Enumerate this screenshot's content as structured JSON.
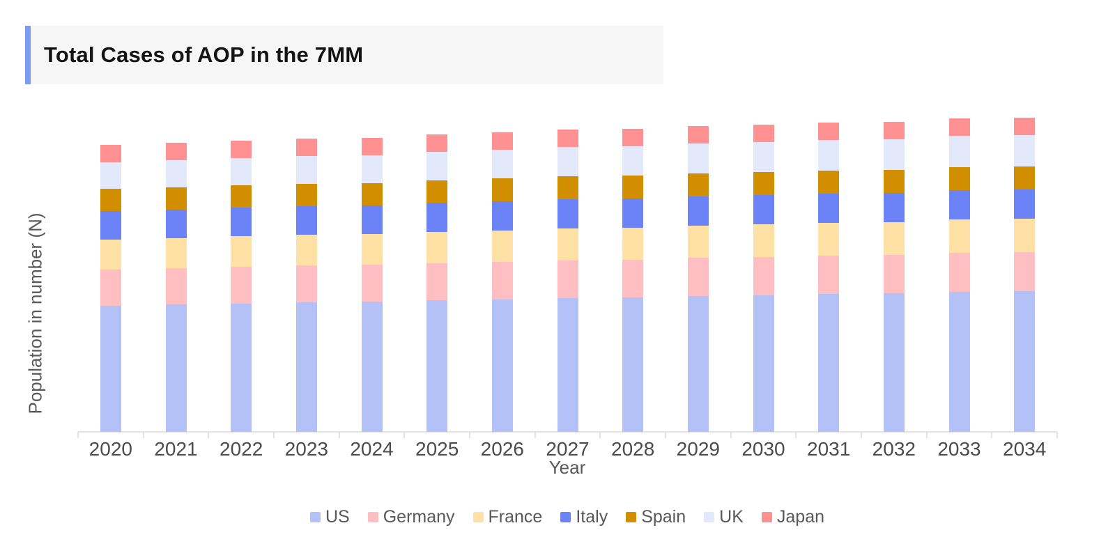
{
  "header": {
    "title": "Total Cases of AOP in the 7MM",
    "accent_color": "#7B9CF0",
    "background": "#F6F6F6"
  },
  "chart_data": {
    "type": "bar",
    "stacked": true,
    "title": "Total Cases of AOP in the 7MM",
    "xlabel": "Year",
    "ylabel": "Population in number (N)",
    "categories": [
      "2020",
      "2021",
      "2022",
      "2023",
      "2024",
      "2025",
      "2026",
      "2027",
      "2028",
      "2029",
      "2030",
      "2031",
      "2032",
      "2033",
      "2034"
    ],
    "series": [
      {
        "name": "US",
        "color": "#B3C1F7",
        "values": [
          181,
          183,
          184,
          186,
          187,
          189,
          190,
          192,
          193,
          195,
          196,
          198,
          199,
          201,
          202
        ]
      },
      {
        "name": "Germany",
        "color": "#FFBEC2",
        "values": [
          52,
          52,
          53,
          53,
          53,
          53,
          54,
          54,
          54,
          55,
          55,
          55,
          55,
          56,
          56
        ]
      },
      {
        "name": "France",
        "color": "#FFE1A6",
        "values": [
          43,
          43,
          44,
          44,
          44,
          45,
          45,
          46,
          46,
          46,
          47,
          47,
          47,
          48,
          48
        ]
      },
      {
        "name": "Italy",
        "color": "#6B83F7",
        "values": [
          41,
          41,
          41,
          41,
          41,
          42,
          42,
          42,
          42,
          42,
          42,
          42,
          42,
          42,
          42
        ]
      },
      {
        "name": "Spain",
        "color": "#D18F00",
        "values": [
          32,
          32,
          32,
          32,
          32,
          32,
          33,
          33,
          33,
          33,
          33,
          33,
          33,
          33,
          33
        ]
      },
      {
        "name": "UK",
        "color": "#E3E9FA",
        "values": [
          38,
          39,
          39,
          40,
          40,
          41,
          41,
          42,
          42,
          43,
          43,
          44,
          44,
          45,
          45
        ]
      },
      {
        "name": "Japan",
        "color": "#FF9192",
        "values": [
          25,
          25,
          25,
          25,
          25,
          25,
          25,
          25,
          25,
          25,
          25,
          25,
          25,
          25,
          25
        ]
      }
    ],
    "value_note": "y axis has no numeric tick labels; values are estimated relative heights",
    "ylim": [
      0,
      470
    ],
    "grid": false,
    "legend_position": "bottom",
    "axis_color": "#E2E2E2"
  }
}
